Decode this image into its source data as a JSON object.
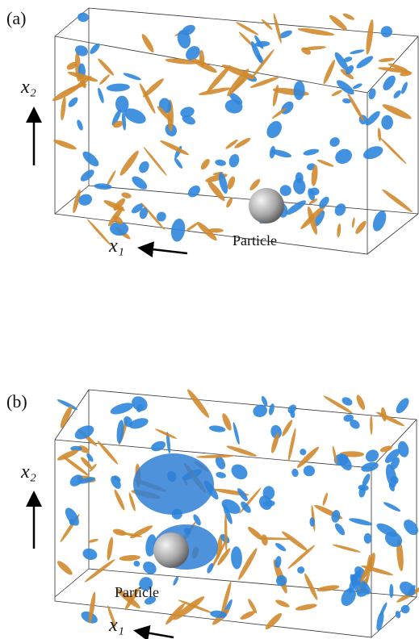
{
  "panels": [
    {
      "label": "(a)",
      "vertical_axis": "x₂",
      "horizontal_axis": "x₁",
      "annotation": "Particle"
    },
    {
      "label": "(b)",
      "vertical_axis": "x₂",
      "horizontal_axis": "x₁",
      "annotation": "Particle"
    }
  ]
}
